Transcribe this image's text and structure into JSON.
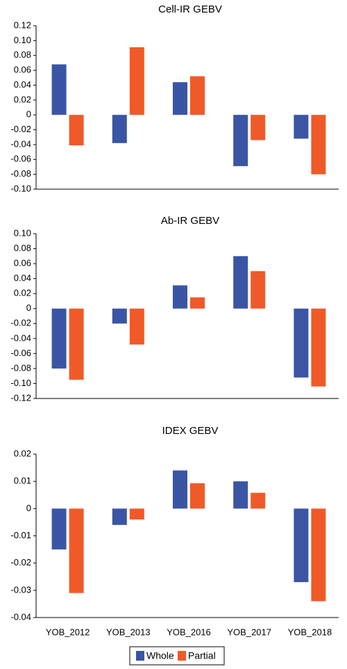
{
  "chart_data": {
    "type": "bar",
    "categories": [
      "YOB_2012",
      "YOB_2013",
      "YOB_2016",
      "YOB_2017",
      "YOB_2018"
    ],
    "colors": {
      "Whole": "#3a55a4",
      "Partial": "#f05a28"
    },
    "legend": {
      "position": "bottom-center",
      "labels": [
        "Whole",
        "Partial"
      ]
    },
    "panels": [
      {
        "title": "Cell-IR GEBV",
        "ylim": [
          -0.1,
          0.12
        ],
        "yticks": [
          0.12,
          0.1,
          0.08,
          0.06,
          0.04,
          0.02,
          0,
          -0.02,
          -0.04,
          -0.06,
          -0.08,
          -0.1
        ],
        "ytick_labels": [
          "0.12",
          "0.10",
          "0.08",
          "0.06",
          "0.04",
          "0.02",
          "0",
          "-0.02",
          "-0.04",
          "-0.06",
          "-0.08",
          "-0.10"
        ],
        "series": [
          {
            "name": "Whole",
            "values": [
              0.068,
              -0.038,
              0.044,
              -0.069,
              -0.032
            ]
          },
          {
            "name": "Partial",
            "values": [
              -0.041,
              0.091,
              0.052,
              -0.034,
              -0.08
            ]
          }
        ]
      },
      {
        "title": "Ab-IR GEBV",
        "ylim": [
          -0.12,
          0.1
        ],
        "yticks": [
          0.1,
          0.08,
          0.06,
          0.04,
          0.02,
          0,
          -0.02,
          -0.04,
          -0.06,
          -0.08,
          -0.1,
          -0.12
        ],
        "ytick_labels": [
          "0.10",
          "0.08",
          "0.06",
          "0.04",
          "0.02",
          "0",
          "-0.02",
          "-0.04",
          "-0.06",
          "-0.08",
          "-0.10",
          "-0.12"
        ],
        "series": [
          {
            "name": "Whole",
            "values": [
              -0.08,
              -0.02,
              0.031,
              0.07,
              -0.092
            ]
          },
          {
            "name": "Partial",
            "values": [
              -0.095,
              -0.048,
              0.015,
              0.05,
              -0.104
            ]
          }
        ]
      },
      {
        "title": "IDEX GEBV",
        "ylim": [
          -0.04,
          0.02
        ],
        "yticks": [
          0.02,
          0.01,
          0,
          -0.01,
          -0.02,
          -0.03,
          -0.04
        ],
        "ytick_labels": [
          "0.02",
          "0.01",
          "0",
          "-0.01",
          "-0.02",
          "-0.03",
          "-0.04"
        ],
        "series": [
          {
            "name": "Whole",
            "values": [
              -0.015,
              -0.006,
              0.014,
              0.01,
              -0.027
            ]
          },
          {
            "name": "Partial",
            "values": [
              -0.031,
              -0.004,
              0.0093,
              0.0058,
              -0.034
            ]
          }
        ]
      }
    ]
  }
}
